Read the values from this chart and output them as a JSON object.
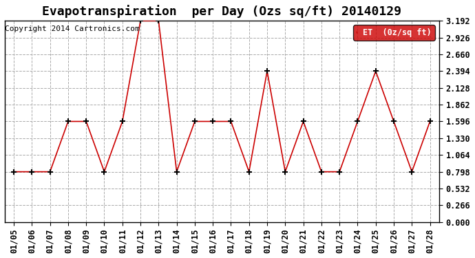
{
  "title": "Evapotranspiration  per Day (Ozs sq/ft) 20140129",
  "copyright": "Copyright 2014 Cartronics.com",
  "legend_label": "ET  (0z/sq ft)",
  "dates": [
    "01/05",
    "01/06",
    "01/07",
    "01/08",
    "01/09",
    "01/10",
    "01/11",
    "01/12",
    "01/13",
    "01/14",
    "01/15",
    "01/16",
    "01/17",
    "01/18",
    "01/19",
    "01/20",
    "01/21",
    "01/22",
    "01/23",
    "01/24",
    "01/25",
    "01/26",
    "01/27",
    "01/28"
  ],
  "values": [
    0.798,
    0.798,
    0.798,
    1.596,
    1.596,
    0.798,
    1.596,
    3.192,
    3.192,
    0.798,
    1.596,
    1.596,
    1.596,
    0.798,
    2.394,
    0.798,
    1.596,
    0.798,
    0.798,
    1.596,
    2.394,
    1.596,
    0.798,
    1.596
  ],
  "ylim": [
    0,
    3.192
  ],
  "yticks": [
    0.0,
    0.266,
    0.532,
    0.798,
    1.064,
    1.33,
    1.596,
    1.862,
    2.128,
    2.394,
    2.66,
    2.926,
    3.192
  ],
  "line_color": "#cc0000",
  "marker_color": "#000000",
  "legend_bg": "#cc0000",
  "legend_text_color": "#ffffff",
  "bg_color": "#ffffff",
  "grid_color": "#aaaaaa",
  "title_fontsize": 13,
  "tick_fontsize": 8.5,
  "copyright_fontsize": 8
}
